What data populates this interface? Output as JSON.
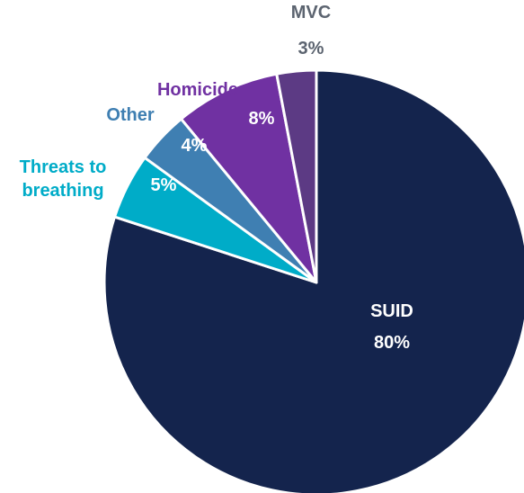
{
  "chart_data": {
    "type": "pie",
    "title": "",
    "slices": [
      {
        "name": "SUID",
        "label": "SUID",
        "percent": 80,
        "percent_label": "80%",
        "color": "#14244d",
        "label_inside": true,
        "label_color": "#ffffff"
      },
      {
        "name": "Threats to breathing",
        "label": "Threats to breathing",
        "label_lines": [
          "Threats to",
          "breathing"
        ],
        "percent": 5,
        "percent_label": "5%",
        "color": "#00acc8",
        "label_color": "#00acc8"
      },
      {
        "name": "Other",
        "label": "Other",
        "percent": 4,
        "percent_label": "4%",
        "color": "#3f7fb2",
        "label_color": "#3f7fb2"
      },
      {
        "name": "Homicide",
        "label": "Homicide",
        "percent": 8,
        "percent_label": "8%",
        "color": "#7031a2",
        "label_color": "#7031a2"
      },
      {
        "name": "MVC",
        "label": "MVC",
        "percent": 3,
        "percent_label": "3%",
        "color": "#5c3a84",
        "label_color": "#5c6470"
      }
    ],
    "legend": "none",
    "start_position": "top",
    "direction": "clockwise"
  }
}
